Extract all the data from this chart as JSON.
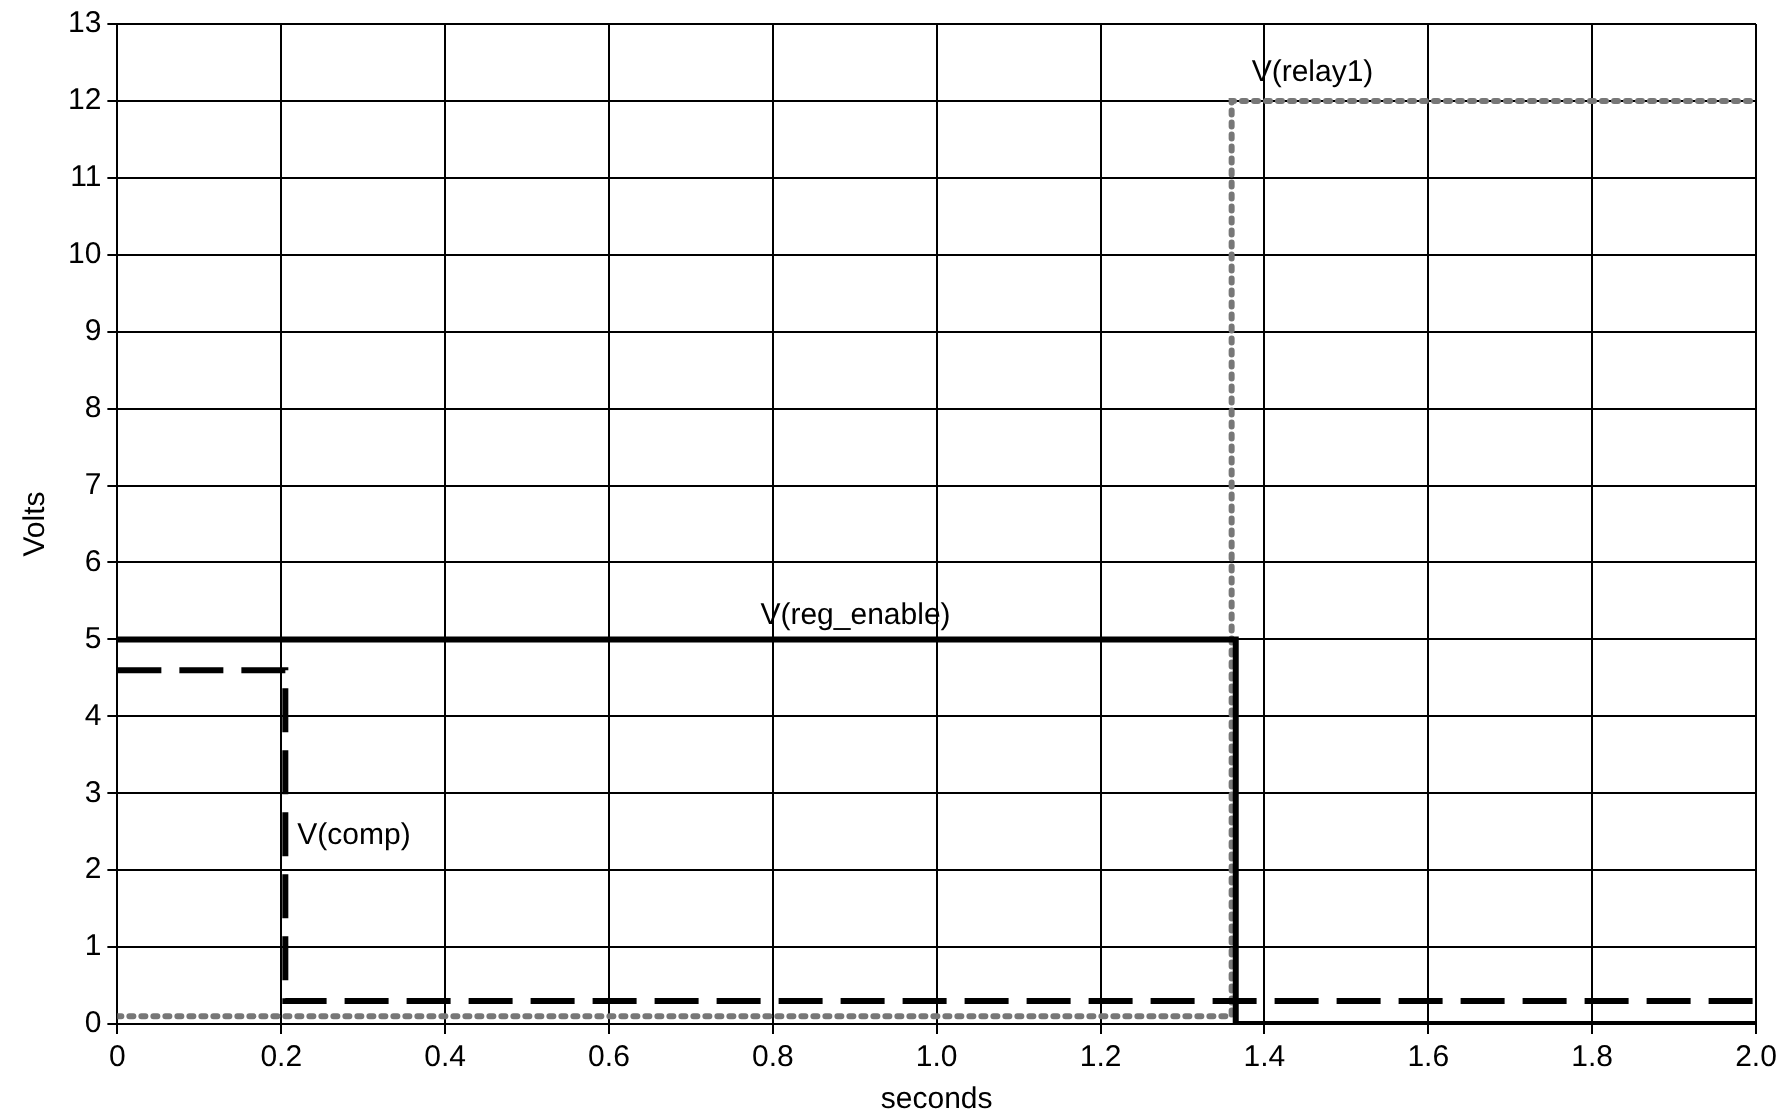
{
  "chart_data": {
    "type": "step",
    "xlabel": "seconds",
    "ylabel": "Volts",
    "xlim": [
      0,
      2
    ],
    "xticks": [
      0,
      0.2,
      0.4,
      0.6,
      0.8,
      {
        "value": 1,
        "label": "1.0"
      },
      1.2,
      1.4,
      1.6,
      1.8,
      {
        "value": 2,
        "label": "2.0"
      }
    ],
    "ylim": [
      0,
      13
    ],
    "yticks": [
      0,
      1,
      2,
      3,
      4,
      5,
      6,
      7,
      8,
      9,
      10,
      11,
      12,
      13
    ],
    "grid": true,
    "legend": false,
    "series": [
      {
        "name": "V(reg_enable)",
        "color": "#000000",
        "line_style": "solid",
        "x": [
          0,
          1.365,
          2.0
        ],
        "values": [
          5,
          0,
          0
        ]
      },
      {
        "name": "V(comp)",
        "color": "#000000",
        "line_style": "dashed",
        "x": [
          0,
          0.205,
          2.0
        ],
        "values": [
          4.6,
          0.3,
          0.3
        ]
      },
      {
        "name": "V(relay1)",
        "color": "#777777",
        "line_style": "dotted",
        "x": [
          0,
          1.36,
          2.0
        ],
        "values": [
          0.1,
          12,
          12
        ]
      }
    ]
  }
}
